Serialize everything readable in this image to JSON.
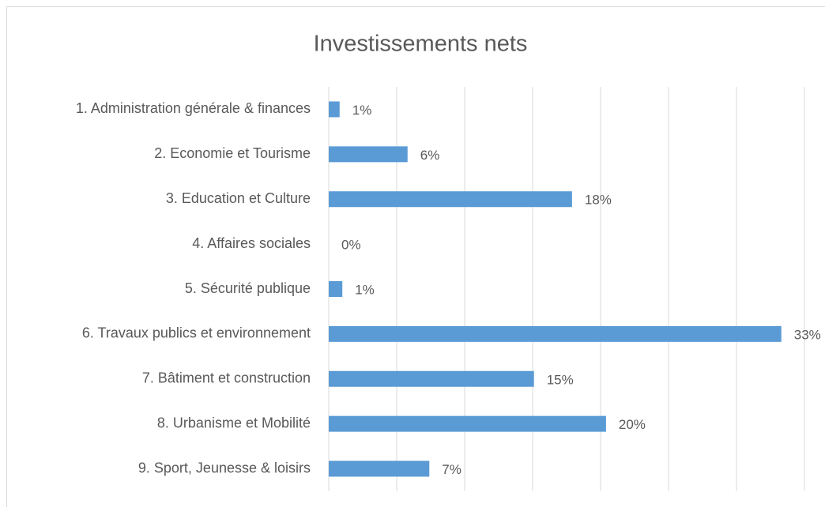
{
  "chart_data": {
    "type": "barh",
    "title": "Investissements nets",
    "categories": [
      "1. Administration générale & finances",
      "2. Economie et Tourisme",
      "3. Education et Culture",
      "4. Affaires sociales",
      "5. Sécurité publique",
      "6. Travaux publics et environnement",
      "7. Bâtiment et construction",
      "8. Urbanisme et Mobilité",
      "9. Sport, Jeunesse & loisirs"
    ],
    "values": [
      0.8,
      5.8,
      17.9,
      0,
      1.0,
      33.3,
      15.1,
      20.4,
      7.4
    ],
    "value_labels": [
      "1%",
      "6%",
      "18%",
      "0%",
      "1%",
      "33%",
      "15%",
      "20%",
      "7%"
    ],
    "color": "#5b9bd5",
    "xlim": [
      0,
      35
    ],
    "xticks": [
      0,
      5,
      10,
      15,
      20,
      25,
      30,
      35
    ],
    "grid": true
  }
}
